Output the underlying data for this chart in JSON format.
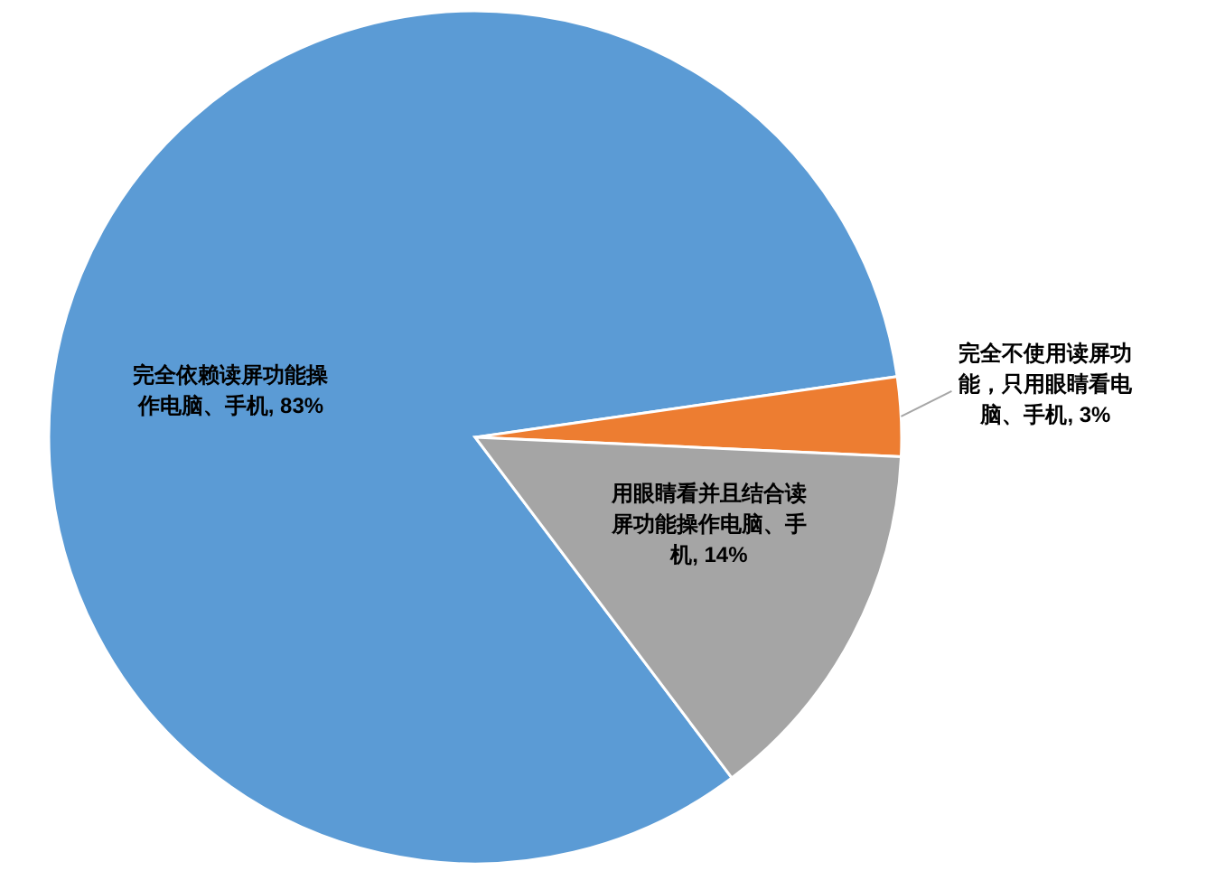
{
  "chart_data": {
    "type": "pie",
    "categories": [
      "完全依赖读屏功能操作电脑、手机",
      "完全不使用读屏功能，只用眼睛看电脑、手机",
      "用眼睛看并且结合读屏功能操作电脑、手机"
    ],
    "values": [
      83,
      3,
      14
    ],
    "colors": [
      "#5b9bd5",
      "#ed7d31",
      "#a5a5a5"
    ],
    "value_labels": [
      "83%",
      "3%",
      "14%"
    ]
  }
}
